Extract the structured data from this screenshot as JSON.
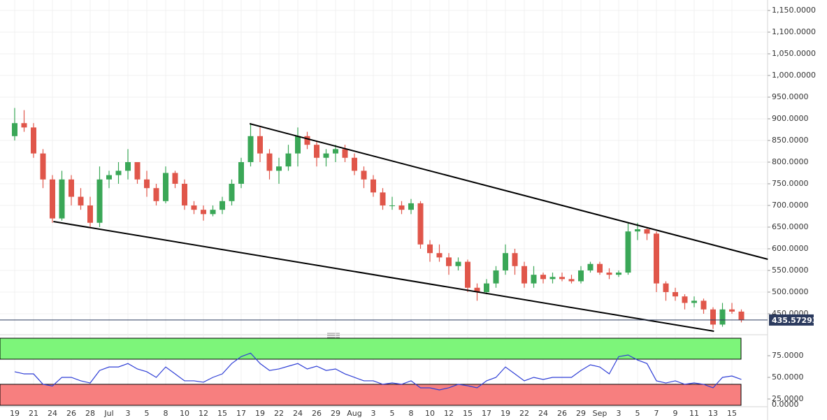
{
  "chart_data": [
    {
      "type": "candlestick",
      "categories": [
        "19",
        null,
        "21",
        null,
        "24",
        null,
        "26",
        null,
        "28",
        null,
        "Jul",
        null,
        "3",
        null,
        "5",
        null,
        "8",
        null,
        "10",
        null,
        "12",
        null,
        "15",
        null,
        "17",
        null,
        "19",
        null,
        "22",
        null,
        "24",
        null,
        "26",
        null,
        "29",
        null,
        "Aug",
        null,
        "3",
        null,
        "5",
        null,
        "8",
        null,
        "10",
        null,
        "12",
        null,
        "15",
        null,
        "17",
        null,
        "19",
        null,
        "22",
        null,
        "24",
        null,
        "26",
        null,
        "29",
        null,
        "Sep",
        null,
        "3",
        null,
        "5",
        null,
        "7",
        null,
        "9",
        null,
        "11",
        null,
        "13",
        null,
        "15",
        null
      ],
      "open": [
        860,
        890,
        880,
        820,
        760,
        670,
        760,
        720,
        700,
        660,
        760,
        770,
        780,
        800,
        760,
        740,
        710,
        775,
        750,
        700,
        690,
        680,
        690,
        710,
        750,
        800,
        860,
        820,
        780,
        790,
        820,
        860,
        840,
        810,
        820,
        830,
        810,
        780,
        760,
        730,
        700,
        700,
        690,
        705,
        610,
        590,
        580,
        560,
        570,
        510,
        500,
        520,
        550,
        590,
        560,
        520,
        540,
        530,
        535,
        530,
        525,
        550,
        565,
        545,
        540,
        545,
        640,
        645,
        635,
        520,
        500,
        490,
        475,
        480,
        460,
        425,
        460,
        455
      ],
      "high": [
        925,
        920,
        890,
        830,
        770,
        780,
        770,
        740,
        720,
        790,
        780,
        800,
        830,
        800,
        780,
        750,
        790,
        780,
        760,
        710,
        700,
        700,
        720,
        760,
        810,
        890,
        880,
        830,
        810,
        840,
        880,
        870,
        850,
        830,
        840,
        840,
        820,
        790,
        770,
        740,
        720,
        710,
        715,
        710,
        620,
        610,
        590,
        580,
        575,
        520,
        530,
        560,
        610,
        600,
        570,
        560,
        545,
        545,
        545,
        540,
        560,
        570,
        570,
        555,
        550,
        660,
        660,
        650,
        640,
        525,
        510,
        495,
        490,
        485,
        465,
        475,
        475,
        460
      ],
      "low": [
        850,
        870,
        810,
        740,
        660,
        665,
        700,
        690,
        650,
        650,
        740,
        750,
        760,
        750,
        720,
        700,
        705,
        740,
        690,
        680,
        665,
        675,
        680,
        700,
        740,
        790,
        800,
        760,
        750,
        780,
        790,
        830,
        790,
        790,
        800,
        800,
        770,
        740,
        720,
        690,
        690,
        680,
        680,
        600,
        570,
        570,
        540,
        550,
        500,
        480,
        495,
        510,
        540,
        540,
        510,
        510,
        520,
        520,
        525,
        520,
        520,
        545,
        540,
        530,
        535,
        540,
        620,
        620,
        500,
        480,
        480,
        460,
        465,
        450,
        415,
        420,
        450,
        430
      ],
      "close": [
        890,
        880,
        820,
        760,
        670,
        760,
        720,
        700,
        660,
        760,
        770,
        780,
        800,
        760,
        740,
        710,
        775,
        750,
        700,
        690,
        680,
        690,
        710,
        750,
        800,
        860,
        820,
        780,
        790,
        820,
        860,
        840,
        810,
        820,
        830,
        810,
        780,
        760,
        730,
        700,
        700,
        690,
        705,
        610,
        590,
        580,
        560,
        570,
        510,
        500,
        520,
        550,
        590,
        560,
        520,
        540,
        530,
        535,
        530,
        525,
        550,
        565,
        545,
        540,
        545,
        640,
        645,
        635,
        520,
        500,
        490,
        475,
        480,
        460,
        425,
        460,
        455,
        436
      ],
      "up_color": "#3aa757",
      "down_color": "#e0564a",
      "ylim": [
        406.4,
        1174.2
      ],
      "yticks": [
        {
          "value": 450,
          "label": "450.0000"
        },
        {
          "value": 500,
          "label": "500.0000"
        },
        {
          "value": 550,
          "label": "550.0000"
        },
        {
          "value": 600,
          "label": "600.0000"
        },
        {
          "value": 650,
          "label": "650.0000"
        },
        {
          "value": 700,
          "label": "700.0000"
        },
        {
          "value": 750,
          "label": "750.0000"
        },
        {
          "value": 800,
          "label": "800.0000"
        },
        {
          "value": 850,
          "label": "850.0000"
        },
        {
          "value": 900,
          "label": "900.0000"
        },
        {
          "value": 950,
          "label": "950.0000"
        },
        {
          "value": 1000,
          "label": "1,000.0000"
        },
        {
          "value": 1050,
          "label": "1,050.0000"
        },
        {
          "value": 1100,
          "label": "1,100.0000"
        },
        {
          "value": 1150,
          "label": "1,150.0000"
        }
      ],
      "grid": true,
      "last_price": 435.57293,
      "last_price_color": "#2b3a5e",
      "trendlines": [
        {
          "x": [
            24.9,
            79.8
          ],
          "y": [
            888.7,
            575.8
          ],
          "color": "#000000"
        },
        {
          "x": [
            4.1,
            74.1
          ],
          "y": [
            662.9,
            409.7
          ],
          "color": "#000000"
        }
      ]
    },
    {
      "type": "line",
      "values": [
        56.5,
        54,
        54,
        42,
        40,
        50,
        50,
        46,
        43.5,
        58,
        62,
        62,
        66,
        59.7,
        56.5,
        50,
        62,
        54,
        46,
        46,
        44.4,
        50,
        54,
        66,
        74,
        78,
        66,
        58,
        59.7,
        62.9,
        66,
        59.7,
        62.9,
        58,
        59.7,
        54,
        50,
        46,
        46,
        42,
        43.5,
        42,
        46,
        37.9,
        37.9,
        35.5,
        37.9,
        42,
        40.3,
        37.9,
        46,
        50,
        62,
        54,
        46,
        50,
        47.6,
        50,
        50,
        50,
        58,
        64.5,
        62,
        54,
        74,
        75.8,
        70,
        66,
        46,
        43.5,
        46,
        42,
        43.5,
        42,
        37.9,
        50,
        51.6,
        47.6
      ],
      "color": "#2f3fd6",
      "ylim": [
        17.7,
        95.2
      ],
      "yticks": [
        {
          "value": 0,
          "label": "0.0000"
        },
        {
          "value": 25,
          "label": "25.0000"
        },
        {
          "value": 50,
          "label": "50.0000"
        },
        {
          "value": 75,
          "label": "75.0000"
        }
      ],
      "bands": [
        {
          "from": 71,
          "to": 95.2,
          "color": "#7df57a"
        },
        {
          "from": 17.7,
          "to": 42,
          "color": "#f77f7f"
        }
      ]
    }
  ]
}
